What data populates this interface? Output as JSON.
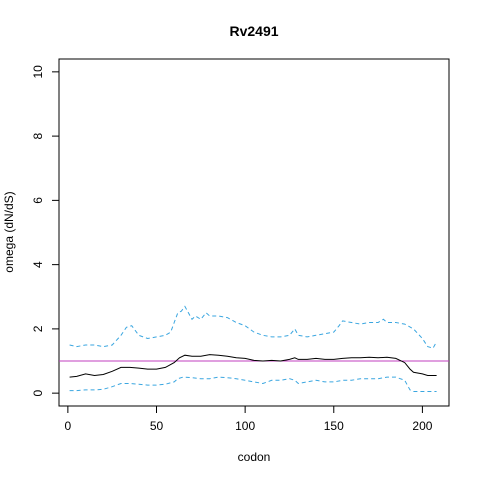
{
  "chart_data": {
    "type": "line",
    "title": "Rv2491",
    "xlabel": "codon",
    "ylabel": "omega (dN/dS)",
    "xlim": [
      -5,
      215
    ],
    "ylim": [
      -0.4,
      10.4
    ],
    "x_ticks": [
      0,
      50,
      100,
      150,
      200
    ],
    "y_ticks": [
      0,
      2,
      4,
      6,
      8,
      10
    ],
    "grid": false,
    "legend": "none",
    "reference_line": {
      "y": 1,
      "color": "#c03fbf"
    },
    "series": [
      {
        "role": "upper",
        "color": "#3aa6e0",
        "style": "dashed",
        "x": [
          1,
          5,
          10,
          15,
          20,
          25,
          30,
          33,
          36,
          40,
          45,
          50,
          55,
          58,
          60,
          62,
          64,
          66,
          68,
          70,
          72,
          75,
          78,
          80,
          85,
          90,
          95,
          100,
          105,
          110,
          115,
          120,
          125,
          128,
          130,
          135,
          140,
          145,
          150,
          153,
          155,
          160,
          165,
          170,
          175,
          178,
          180,
          185,
          190,
          195,
          200,
          203,
          206,
          208
        ],
        "y": [
          1.5,
          1.45,
          1.5,
          1.5,
          1.45,
          1.5,
          1.8,
          2.05,
          2.1,
          1.8,
          1.7,
          1.75,
          1.8,
          1.9,
          2.2,
          2.5,
          2.55,
          2.7,
          2.5,
          2.3,
          2.4,
          2.3,
          2.5,
          2.4,
          2.4,
          2.35,
          2.2,
          2.1,
          1.9,
          1.8,
          1.75,
          1.75,
          1.8,
          2.0,
          1.8,
          1.75,
          1.8,
          1.85,
          1.9,
          2.1,
          2.25,
          2.2,
          2.15,
          2.2,
          2.2,
          2.3,
          2.2,
          2.2,
          2.15,
          2.0,
          1.7,
          1.45,
          1.4,
          1.6
        ]
      },
      {
        "role": "mean",
        "color": "#000000",
        "style": "solid",
        "x": [
          1,
          5,
          10,
          15,
          20,
          25,
          30,
          35,
          40,
          45,
          50,
          55,
          60,
          63,
          66,
          70,
          75,
          80,
          85,
          90,
          95,
          100,
          105,
          110,
          115,
          120,
          125,
          128,
          130,
          135,
          140,
          145,
          150,
          155,
          160,
          165,
          170,
          175,
          180,
          185,
          190,
          193,
          195,
          200,
          203,
          206,
          208
        ],
        "y": [
          0.5,
          0.52,
          0.6,
          0.55,
          0.58,
          0.68,
          0.8,
          0.8,
          0.78,
          0.75,
          0.75,
          0.8,
          0.95,
          1.1,
          1.18,
          1.15,
          1.15,
          1.2,
          1.18,
          1.15,
          1.1,
          1.08,
          1.02,
          1.0,
          1.02,
          1.0,
          1.05,
          1.1,
          1.05,
          1.05,
          1.08,
          1.05,
          1.05,
          1.08,
          1.1,
          1.1,
          1.12,
          1.1,
          1.12,
          1.08,
          0.95,
          0.75,
          0.65,
          0.6,
          0.55,
          0.55,
          0.55
        ]
      },
      {
        "role": "lower",
        "color": "#3aa6e0",
        "style": "dashed",
        "x": [
          1,
          5,
          10,
          15,
          20,
          25,
          30,
          35,
          40,
          45,
          50,
          55,
          60,
          62,
          65,
          70,
          75,
          80,
          85,
          90,
          95,
          100,
          105,
          110,
          115,
          120,
          125,
          128,
          130,
          135,
          140,
          145,
          150,
          155,
          160,
          165,
          170,
          175,
          180,
          185,
          190,
          193,
          195,
          200,
          205,
          208
        ],
        "y": [
          0.08,
          0.08,
          0.1,
          0.1,
          0.12,
          0.2,
          0.3,
          0.3,
          0.28,
          0.25,
          0.25,
          0.28,
          0.35,
          0.45,
          0.5,
          0.48,
          0.45,
          0.45,
          0.5,
          0.48,
          0.45,
          0.4,
          0.35,
          0.3,
          0.4,
          0.4,
          0.45,
          0.4,
          0.3,
          0.35,
          0.4,
          0.35,
          0.35,
          0.4,
          0.4,
          0.45,
          0.45,
          0.45,
          0.5,
          0.5,
          0.4,
          0.1,
          0.05,
          0.05,
          0.05,
          0.05
        ]
      }
    ]
  }
}
